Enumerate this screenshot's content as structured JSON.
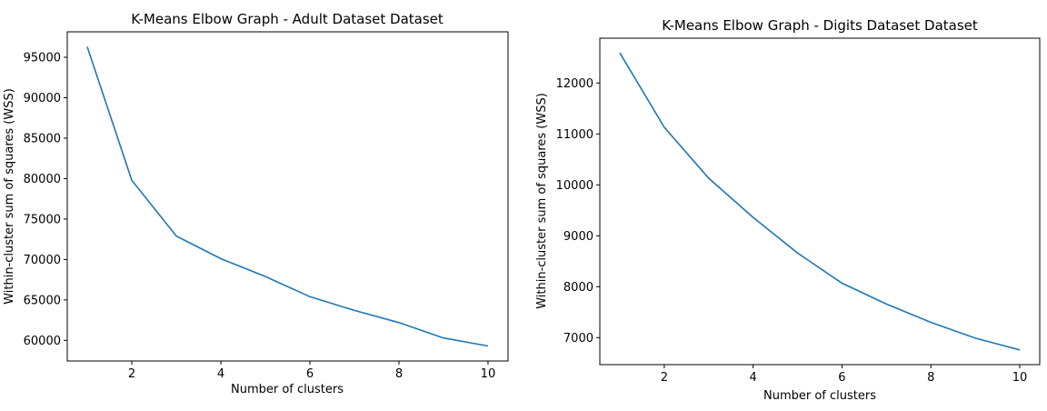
{
  "chart_data": [
    {
      "type": "line",
      "title": "K-Means Elbow Graph - Adult Dataset Dataset",
      "xlabel": "Number of clusters",
      "ylabel": "Within-cluster sum of squares (WSS)",
      "x": [
        1,
        2,
        3,
        4,
        5,
        6,
        7,
        8,
        9,
        10
      ],
      "series": [
        {
          "values": [
            96300,
            79800,
            72900,
            70100,
            67900,
            65400,
            63700,
            62200,
            60300,
            59300
          ]
        }
      ],
      "xlim": [
        0.55,
        10.45
      ],
      "ylim": [
        57450,
        98150
      ],
      "xticks": [
        2,
        4,
        6,
        8,
        10
      ],
      "yticks": [
        60000,
        65000,
        70000,
        75000,
        80000,
        85000,
        90000,
        95000
      ],
      "grid": false,
      "line_color": "#1f77b4"
    },
    {
      "type": "line",
      "title": "K-Means Elbow Graph - Digits Dataset Dataset",
      "xlabel": "Number of clusters",
      "ylabel": "Within-cluster sum of squares (WSS)",
      "x": [
        1,
        2,
        3,
        4,
        5,
        6,
        7,
        8,
        9,
        10
      ],
      "series": [
        {
          "values": [
            12590,
            11130,
            10130,
            9360,
            8660,
            8070,
            7660,
            7300,
            6990,
            6760
          ]
        }
      ],
      "xlim": [
        0.55,
        10.45
      ],
      "ylim": [
        6470,
        12880
      ],
      "xticks": [
        2,
        4,
        6,
        8,
        10
      ],
      "yticks": [
        7000,
        8000,
        9000,
        10000,
        11000,
        12000
      ],
      "grid": false,
      "line_color": "#1f77b4"
    }
  ]
}
